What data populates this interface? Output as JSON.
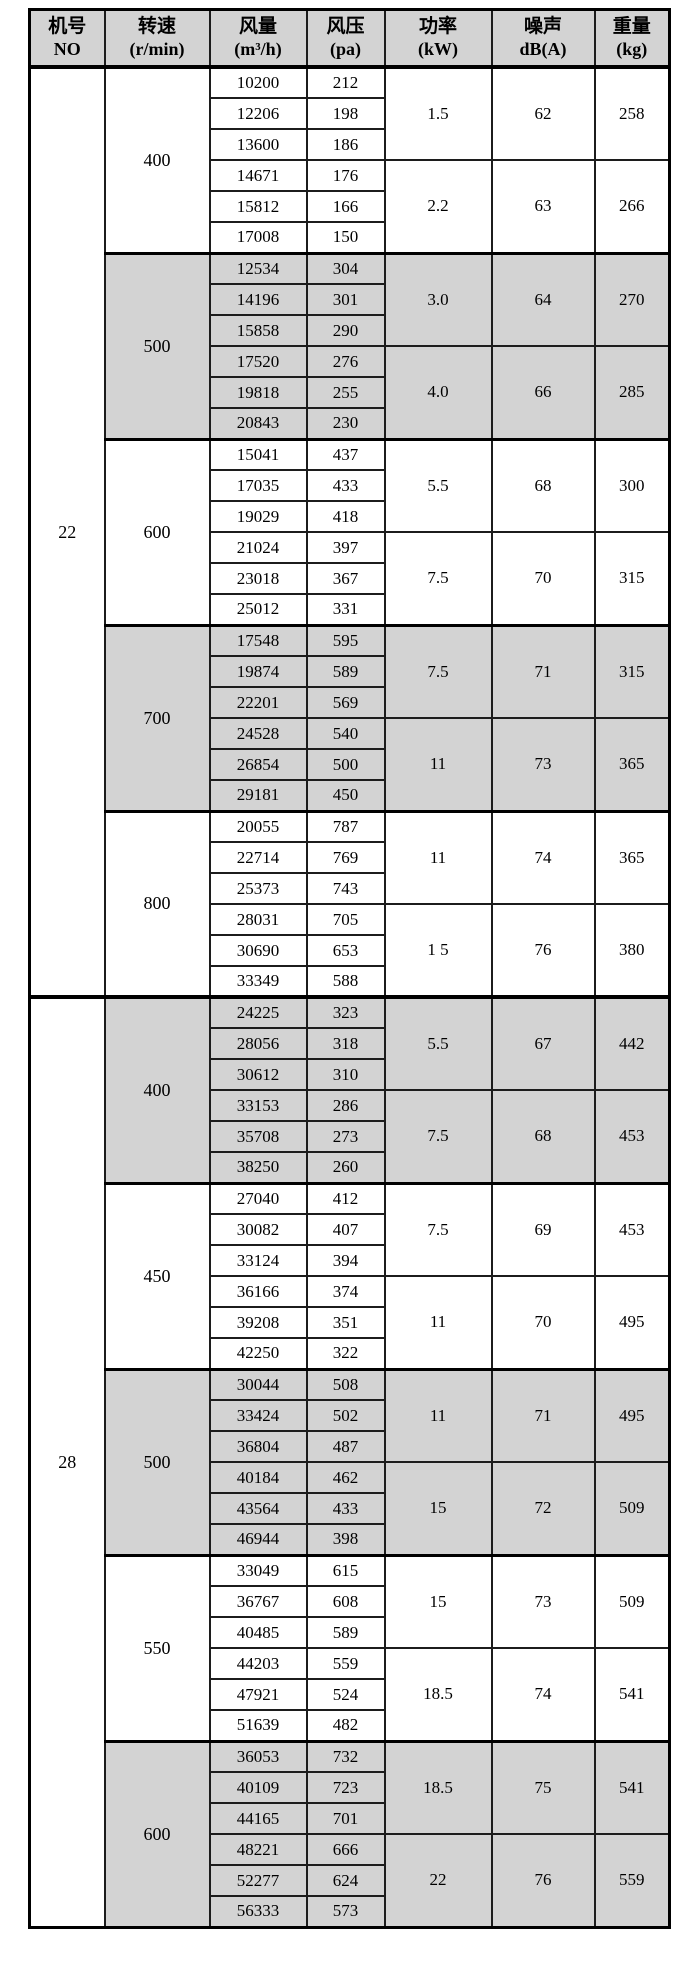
{
  "colors": {
    "shaded_row": "#d3d3d3",
    "header_bg": "#d3d3d3",
    "border": "#1c1c1c",
    "thick_border": "#000000",
    "text": "#000000"
  },
  "table": {
    "columns": [
      {
        "key": "machine-no",
        "title": "机号",
        "unit": "NO"
      },
      {
        "key": "speed",
        "title": "转速",
        "unit": "(r/min)"
      },
      {
        "key": "airflow",
        "title": "风量",
        "unit": "(m³/h)"
      },
      {
        "key": "pressure",
        "title": "风压",
        "unit": "(pa)"
      },
      {
        "key": "power",
        "title": "功率",
        "unit": "(kW)"
      },
      {
        "key": "noise",
        "title": "噪声",
        "unit": "dB(A)"
      },
      {
        "key": "weight",
        "title": "重量",
        "unit": "(kg)"
      }
    ],
    "sections": [
      {
        "no": "22",
        "groups": [
          {
            "speed": "400",
            "shaded": false,
            "blocks": [
              {
                "rows": [
                  [
                    "10200",
                    "212"
                  ],
                  [
                    "12206",
                    "198"
                  ],
                  [
                    "13600",
                    "186"
                  ]
                ],
                "power": "1.5",
                "noise": "62",
                "weight": "258"
              },
              {
                "rows": [
                  [
                    "14671",
                    "176"
                  ],
                  [
                    "15812",
                    "166"
                  ],
                  [
                    "17008",
                    "150"
                  ]
                ],
                "power": "2.2",
                "noise": "63",
                "weight": "266"
              }
            ]
          },
          {
            "speed": "500",
            "shaded": true,
            "blocks": [
              {
                "rows": [
                  [
                    "12534",
                    "304"
                  ],
                  [
                    "14196",
                    "301"
                  ],
                  [
                    "15858",
                    "290"
                  ]
                ],
                "power": "3.0",
                "noise": "64",
                "weight": "270"
              },
              {
                "rows": [
                  [
                    "17520",
                    "276"
                  ],
                  [
                    "19818",
                    "255"
                  ],
                  [
                    "20843",
                    "230"
                  ]
                ],
                "power": "4.0",
                "noise": "66",
                "weight": "285"
              }
            ]
          },
          {
            "speed": "600",
            "shaded": false,
            "blocks": [
              {
                "rows": [
                  [
                    "15041",
                    "437"
                  ],
                  [
                    "17035",
                    "433"
                  ],
                  [
                    "19029",
                    "418"
                  ]
                ],
                "power": "5.5",
                "noise": "68",
                "weight": "300"
              },
              {
                "rows": [
                  [
                    "21024",
                    "397"
                  ],
                  [
                    "23018",
                    "367"
                  ],
                  [
                    "25012",
                    "331"
                  ]
                ],
                "power": "7.5",
                "noise": "70",
                "weight": "315"
              }
            ]
          },
          {
            "speed": "700",
            "shaded": true,
            "blocks": [
              {
                "rows": [
                  [
                    "17548",
                    "595"
                  ],
                  [
                    "19874",
                    "589"
                  ],
                  [
                    "22201",
                    "569"
                  ]
                ],
                "power": "7.5",
                "noise": "71",
                "weight": "315"
              },
              {
                "rows": [
                  [
                    "24528",
                    "540"
                  ],
                  [
                    "26854",
                    "500"
                  ],
                  [
                    "29181",
                    "450"
                  ]
                ],
                "power": "11",
                "noise": "73",
                "weight": "365"
              }
            ]
          },
          {
            "speed": "800",
            "shaded": false,
            "blocks": [
              {
                "rows": [
                  [
                    "20055",
                    "787"
                  ],
                  [
                    "22714",
                    "769"
                  ],
                  [
                    "25373",
                    "743"
                  ]
                ],
                "power": "11",
                "noise": "74",
                "weight": "365"
              },
              {
                "rows": [
                  [
                    "28031",
                    "705"
                  ],
                  [
                    "30690",
                    "653"
                  ],
                  [
                    "33349",
                    "588"
                  ]
                ],
                "power": "1 5",
                "noise": "76",
                "weight": "380"
              }
            ]
          }
        ]
      },
      {
        "no": "28",
        "groups": [
          {
            "speed": "400",
            "shaded": true,
            "blocks": [
              {
                "rows": [
                  [
                    "24225",
                    "323"
                  ],
                  [
                    "28056",
                    "318"
                  ],
                  [
                    "30612",
                    "310"
                  ]
                ],
                "power": "5.5",
                "noise": "67",
                "weight": "442"
              },
              {
                "rows": [
                  [
                    "33153",
                    "286"
                  ],
                  [
                    "35708",
                    "273"
                  ],
                  [
                    "38250",
                    "260"
                  ]
                ],
                "power": "7.5",
                "noise": "68",
                "weight": "453"
              }
            ]
          },
          {
            "speed": "450",
            "shaded": false,
            "blocks": [
              {
                "rows": [
                  [
                    "27040",
                    "412"
                  ],
                  [
                    "30082",
                    "407"
                  ],
                  [
                    "33124",
                    "394"
                  ]
                ],
                "power": "7.5",
                "noise": "69",
                "weight": "453"
              },
              {
                "rows": [
                  [
                    "36166",
                    "374"
                  ],
                  [
                    "39208",
                    "351"
                  ],
                  [
                    "42250",
                    "322"
                  ]
                ],
                "power": "11",
                "noise": "70",
                "weight": "495"
              }
            ]
          },
          {
            "speed": "500",
            "shaded": true,
            "blocks": [
              {
                "rows": [
                  [
                    "30044",
                    "508"
                  ],
                  [
                    "33424",
                    "502"
                  ],
                  [
                    "36804",
                    "487"
                  ]
                ],
                "power": "11",
                "noise": "71",
                "weight": "495"
              },
              {
                "rows": [
                  [
                    "40184",
                    "462"
                  ],
                  [
                    "43564",
                    "433"
                  ],
                  [
                    "46944",
                    "398"
                  ]
                ],
                "power": "15",
                "noise": "72",
                "weight": "509"
              }
            ]
          },
          {
            "speed": "550",
            "shaded": false,
            "blocks": [
              {
                "rows": [
                  [
                    "33049",
                    "615"
                  ],
                  [
                    "36767",
                    "608"
                  ],
                  [
                    "40485",
                    "589"
                  ]
                ],
                "power": "15",
                "noise": "73",
                "weight": "509"
              },
              {
                "rows": [
                  [
                    "44203",
                    "559"
                  ],
                  [
                    "47921",
                    "524"
                  ],
                  [
                    "51639",
                    "482"
                  ]
                ],
                "power": "18.5",
                "noise": "74",
                "weight": "541"
              }
            ]
          },
          {
            "speed": "600",
            "shaded": true,
            "blocks": [
              {
                "rows": [
                  [
                    "36053",
                    "732"
                  ],
                  [
                    "40109",
                    "723"
                  ],
                  [
                    "44165",
                    "701"
                  ]
                ],
                "power": "18.5",
                "noise": "75",
                "weight": "541"
              },
              {
                "rows": [
                  [
                    "48221",
                    "666"
                  ],
                  [
                    "52277",
                    "624"
                  ],
                  [
                    "56333",
                    "573"
                  ]
                ],
                "power": "22",
                "noise": "76",
                "weight": "559"
              }
            ]
          }
        ]
      }
    ]
  }
}
